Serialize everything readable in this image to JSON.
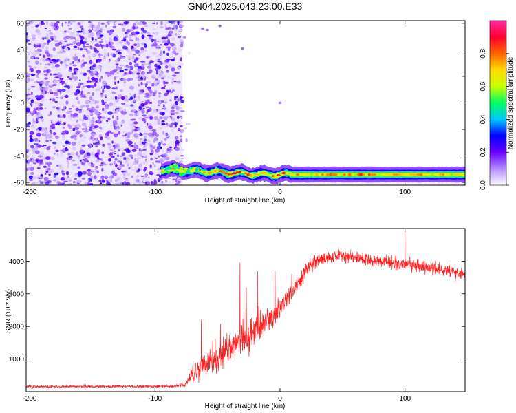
{
  "title": "GN04.2025.043.23.00.E33",
  "chart_data": [
    {
      "type": "heatmap",
      "title": "GN04.2025.043.23.00.E33",
      "xlabel": "Height of straight line (km)",
      "ylabel": "Frequency (Hz)",
      "xlim": [
        -203,
        148
      ],
      "ylim": [
        -62,
        62
      ],
      "x_ticks": [
        "-200",
        "-100",
        "0",
        "100"
      ],
      "x_tick_values": [
        -200,
        -100,
        0,
        100
      ],
      "y_ticks": [
        "-60",
        "-40",
        "-20",
        "0",
        "20",
        "40",
        "60"
      ],
      "y_tick_values": [
        -60,
        -40,
        -20,
        0,
        20,
        40,
        60
      ],
      "colorbar": {
        "label": "Normalized spectral amplitude",
        "range": [
          0,
          1
        ],
        "ticks": [
          "0.0",
          "0.2",
          "0.4",
          "0.6",
          "0.8"
        ],
        "tick_values": [
          0.0,
          0.2,
          0.4,
          0.6,
          0.8
        ],
        "colormap": [
          "#ffffff",
          "#b48cff",
          "#6a00ff",
          "#0000ff",
          "#00c8ff",
          "#00ff64",
          "#c8ff00",
          "#ffdc00",
          "#ff6400",
          "#ff0032",
          "#ff2aa0"
        ]
      },
      "features": {
        "noise_region_x": [
          -203,
          -78
        ],
        "carrier_start_x": -95,
        "carrier_frequency_start": -50,
        "carrier_frequency_end": -54,
        "carrier_peak_amplitude": 0.92
      }
    },
    {
      "type": "line",
      "xlabel": "Height of straight line (km)",
      "ylabel": "SNR (10 * v/v)",
      "xlim": [
        -203,
        148
      ],
      "ylim": [
        0,
        5000
      ],
      "x_ticks": [
        "-200",
        "-100",
        "0",
        "100"
      ],
      "x_tick_values": [
        -200,
        -100,
        0,
        100
      ],
      "y_ticks": [
        "1000",
        "2000",
        "3000",
        "4000"
      ],
      "y_tick_values": [
        1000,
        2000,
        3000,
        4000
      ],
      "color": "#ff2020",
      "series": [
        {
          "x": [
            -203,
            -180,
            -150,
            -120,
            -100,
            -85,
            -75,
            -70,
            -65,
            -60,
            -55,
            -50,
            -45,
            -40,
            -35,
            -30,
            -25,
            -20,
            -15,
            -10,
            -5,
            0,
            5,
            10,
            15,
            20,
            25,
            30,
            40,
            50,
            60,
            70,
            80,
            90,
            100,
            110,
            120,
            130,
            140,
            148
          ],
          "y": [
            150,
            150,
            160,
            160,
            160,
            170,
            220,
            550,
            700,
            800,
            950,
            1050,
            1200,
            1350,
            1500,
            1600,
            1700,
            1800,
            2000,
            2150,
            2350,
            2550,
            2800,
            3050,
            3350,
            3650,
            3900,
            4050,
            4150,
            4150,
            4100,
            4050,
            4000,
            3950,
            3900,
            3850,
            3800,
            3750,
            3650,
            3600
          ],
          "noise_amplitude": [
            60,
            60,
            60,
            60,
            60,
            60,
            120,
            450,
            500,
            550,
            600,
            600,
            650,
            650,
            700,
            700,
            700,
            700,
            650,
            600,
            550,
            500,
            450,
            450,
            400,
            400,
            350,
            300,
            300,
            300,
            300,
            300,
            300,
            300,
            300,
            300,
            300,
            300,
            300,
            300
          ]
        }
      ],
      "peaks": [
        {
          "x": -63,
          "y": 2200
        },
        {
          "x": -32,
          "y": 3950
        },
        {
          "x": -27,
          "y": 3200
        },
        {
          "x": -18,
          "y": 3700
        },
        {
          "x": 100,
          "y": 4900
        }
      ]
    }
  ]
}
